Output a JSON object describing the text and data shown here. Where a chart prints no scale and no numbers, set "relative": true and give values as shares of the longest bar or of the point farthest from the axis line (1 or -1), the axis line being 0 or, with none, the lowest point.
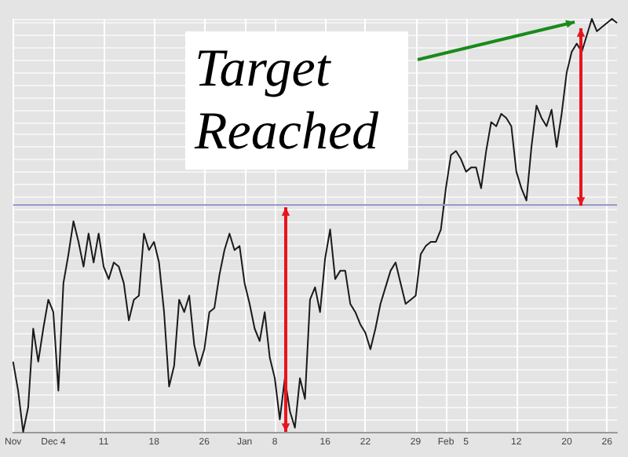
{
  "chart_data": {
    "type": "line",
    "relative": true,
    "tick_labels": "x",
    "grid": true,
    "marker": "none",
    "line_style": "solid",
    "categories": [
      "Nov",
      null,
      null,
      null,
      null,
      null,
      null,
      null,
      "Dec 4",
      null,
      null,
      null,
      null,
      null,
      null,
      null,
      null,
      null,
      "11",
      null,
      null,
      null,
      null,
      null,
      null,
      null,
      null,
      null,
      "18",
      null,
      null,
      null,
      null,
      null,
      null,
      null,
      null,
      null,
      "26",
      null,
      null,
      null,
      null,
      null,
      null,
      null,
      "Jan",
      null,
      null,
      null,
      null,
      null,
      "8",
      null,
      null,
      null,
      null,
      null,
      null,
      null,
      null,
      null,
      "16",
      null,
      null,
      null,
      null,
      null,
      null,
      null,
      "22",
      null,
      null,
      null,
      null,
      null,
      null,
      null,
      null,
      null,
      "29",
      null,
      null,
      null,
      null,
      null,
      "Feb",
      null,
      null,
      null,
      "5",
      null,
      null,
      null,
      null,
      null,
      null,
      null,
      null,
      null,
      "12",
      null,
      null,
      null,
      null,
      null,
      null,
      null,
      null,
      null,
      "20",
      null,
      null,
      null,
      null,
      null,
      null,
      null,
      "26",
      null,
      null
    ],
    "series": [
      {
        "color": "#1a1a1a",
        "values": [
          0.17,
          0.1,
          0,
          0.06,
          0.25,
          0.17,
          0.25,
          0.32,
          0.29,
          0.1,
          0.36,
          0.43,
          0.51,
          0.46,
          0.4,
          0.48,
          0.41,
          0.48,
          0.4,
          0.37,
          0.41,
          0.4,
          0.36,
          0.27,
          0.32,
          0.33,
          0.48,
          0.44,
          0.46,
          0.41,
          0.29,
          0.11,
          0.16,
          0.32,
          0.29,
          0.33,
          0.21,
          0.16,
          0.2,
          0.29,
          0.3,
          0.38,
          0.44,
          0.48,
          0.44,
          0.45,
          0.36,
          0.31,
          0.25,
          0.22,
          0.29,
          0.18,
          0.13,
          0.03,
          0.13,
          0.05,
          0.01,
          0.13,
          0.08,
          0.32,
          0.35,
          0.29,
          0.42,
          0.49,
          0.37,
          0.39,
          0.39,
          0.31,
          0.29,
          0.26,
          0.24,
          0.2,
          0.25,
          0.31,
          0.35,
          0.39,
          0.41,
          0.36,
          0.31,
          0.32,
          0.33,
          0.43,
          0.45,
          0.46,
          0.46,
          0.49,
          0.59,
          0.67,
          0.68,
          0.66,
          0.63,
          0.64,
          0.64,
          0.59,
          0.68,
          0.75,
          0.74,
          0.77,
          0.76,
          0.74,
          0.63,
          0.59,
          0.56,
          0.69,
          0.79,
          0.76,
          0.74,
          0.78,
          0.69,
          0.77,
          0.87,
          0.92,
          0.94,
          0.92,
          0.96,
          1.0,
          0.97,
          0.98,
          0.99,
          1.0,
          0.99
        ]
      }
    ],
    "ref_lines": [
      {
        "axis": "y",
        "value": 0.55,
        "color": "#9999cc"
      }
    ],
    "annotations": [
      "Target Reached"
    ]
  }
}
